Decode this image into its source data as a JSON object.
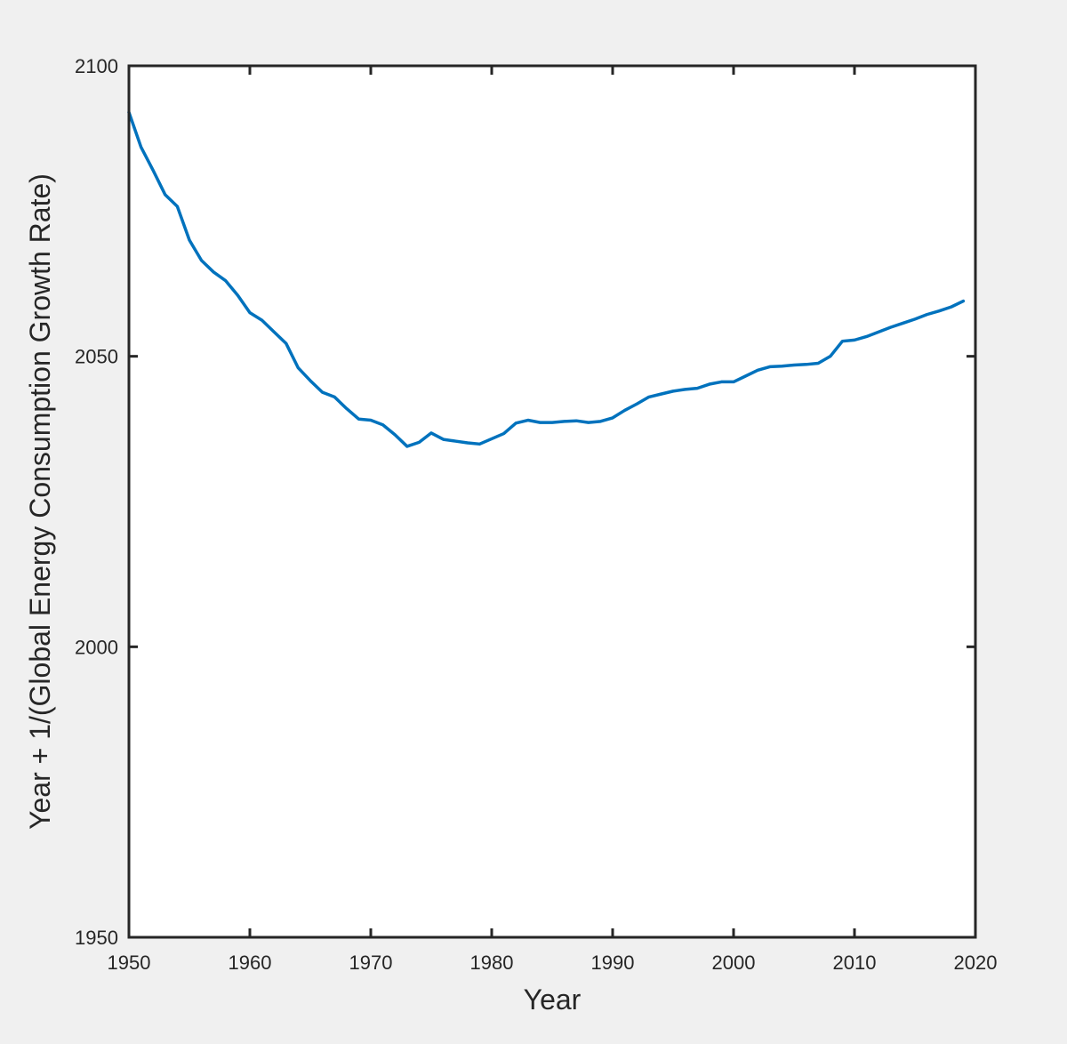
{
  "chart_data": {
    "type": "line",
    "title": "",
    "xlabel": "Year",
    "ylabel": "Year + 1/(Global Energy Consumption Growth Rate)",
    "xlim": [
      1950,
      2020
    ],
    "ylim": [
      1950,
      2100
    ],
    "xticks": [
      "1950",
      "1960",
      "1970",
      "1980",
      "1990",
      "2000",
      "2010",
      "2020"
    ],
    "yticks": [
      "1950",
      "2000",
      "2050",
      "2100"
    ],
    "grid": false,
    "legend": "none",
    "series": [
      {
        "color": "#0072bd",
        "x": [
          1950,
          1951,
          1952,
          1953,
          1954,
          1955,
          1956,
          1957,
          1958,
          1959,
          1960,
          1961,
          1962,
          1963,
          1964,
          1965,
          1966,
          1967,
          1968,
          1969,
          1970,
          1971,
          1972,
          1973,
          1974,
          1975,
          1976,
          1977,
          1978,
          1979,
          1980,
          1981,
          1982,
          1983,
          1984,
          1985,
          1986,
          1987,
          1988,
          1989,
          1990,
          1991,
          1992,
          1993,
          1994,
          1995,
          1996,
          1997,
          1998,
          1999,
          2000,
          2001,
          2002,
          2003,
          2004,
          2005,
          2006,
          2007,
          2008,
          2009,
          2010,
          2011,
          2012,
          2013,
          2014,
          2015,
          2016,
          2017,
          2018,
          2019
        ],
        "y": [
          2092.0,
          2086.0,
          2082.0,
          2077.8,
          2075.8,
          2070.0,
          2066.5,
          2064.5,
          2063.0,
          2060.5,
          2057.5,
          2056.2,
          2054.2,
          2052.2,
          2048.0,
          2045.8,
          2043.8,
          2043.0,
          2041.0,
          2039.2,
          2039.0,
          2038.2,
          2036.5,
          2034.5,
          2035.2,
          2036.8,
          2035.7,
          2035.4,
          2035.1,
          2034.9,
          2035.8,
          2036.7,
          2038.5,
          2039.0,
          2038.6,
          2038.6,
          2038.8,
          2038.9,
          2038.6,
          2038.8,
          2039.4,
          2040.7,
          2041.8,
          2043.0,
          2043.5,
          2044.0,
          2044.3,
          2044.5,
          2045.2,
          2045.6,
          2045.6,
          2046.6,
          2047.6,
          2048.2,
          2048.3,
          2048.5,
          2048.6,
          2048.8,
          2050.0,
          2052.6,
          2052.8,
          2053.4,
          2054.2,
          2055.0,
          2055.7,
          2056.4,
          2057.2,
          2057.8,
          2058.5,
          2059.5
        ]
      }
    ]
  }
}
